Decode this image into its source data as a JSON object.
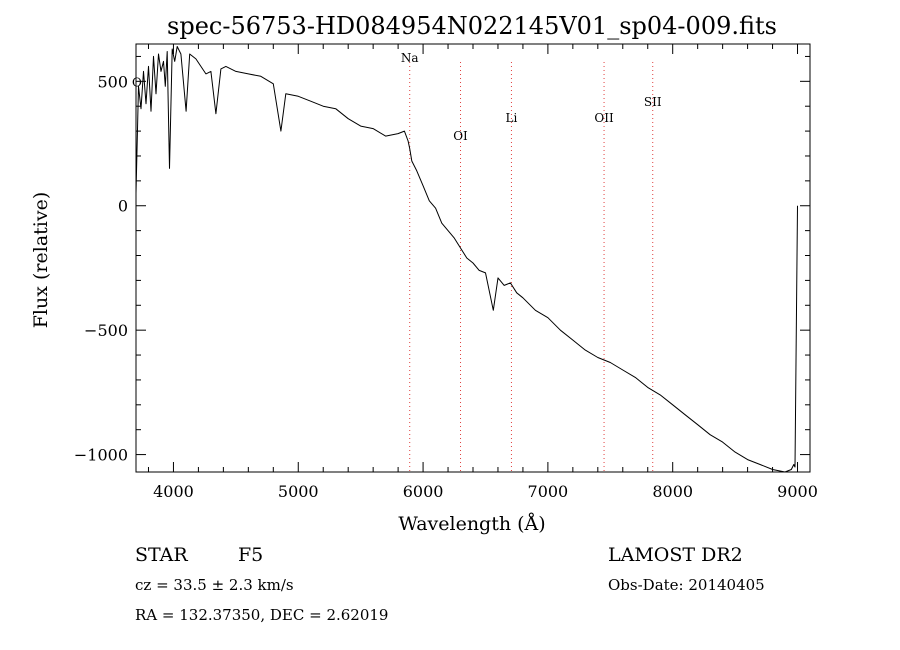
{
  "colors": {
    "axis": "#000000",
    "spectrum": "#000000",
    "line_marker": "#e0403f",
    "background": "#ffffff"
  },
  "chart_data": {
    "type": "line",
    "title": "spec-56753-HD084954N022145V01_sp04-009.fits",
    "xlabel": "Wavelength (Å)",
    "ylabel": "Flux (relative)",
    "xlim": [
      3700,
      9100
    ],
    "ylim": [
      -1070,
      650
    ],
    "x_ticks": [
      4000,
      5000,
      6000,
      7000,
      8000,
      9000
    ],
    "y_ticks": [
      -1000,
      -500,
      0,
      500
    ],
    "grid": false,
    "spectral_lines": [
      {
        "label": "Na",
        "x": 5893
      },
      {
        "label": "OI",
        "x": 6300
      },
      {
        "label": "Li",
        "x": 6708
      },
      {
        "label": "OII",
        "x": 7450
      },
      {
        "label": "SII",
        "x": 7840
      }
    ],
    "edge_label": "O",
    "series": [
      {
        "x": [
          3700,
          3720,
          3740,
          3760,
          3780,
          3800,
          3820,
          3840,
          3860,
          3880,
          3900,
          3920,
          3935,
          3950,
          3968,
          3990,
          4010,
          4030,
          4060,
          4101,
          4130,
          4180,
          4220,
          4260,
          4300,
          4340,
          4380,
          4420,
          4500,
          4600,
          4700,
          4800,
          4861,
          4900,
          5000,
          5100,
          5200,
          5300,
          5400,
          5500,
          5600,
          5700,
          5800,
          5850,
          5880,
          5893,
          5910,
          5950,
          6000,
          6050,
          6100,
          6150,
          6200,
          6250,
          6300,
          6350,
          6400,
          6450,
          6500,
          6563,
          6600,
          6650,
          6700,
          6750,
          6800,
          6900,
          7000,
          7100,
          7200,
          7300,
          7400,
          7500,
          7600,
          7700,
          7800,
          7900,
          8000,
          8100,
          8200,
          8300,
          8400,
          8500,
          8600,
          8700,
          8800,
          8850,
          8900,
          8950,
          8970,
          8980,
          8990,
          9000
        ],
        "y": [
          50,
          480,
          390,
          540,
          410,
          560,
          380,
          600,
          450,
          610,
          540,
          580,
          480,
          620,
          150,
          630,
          580,
          640,
          610,
          380,
          610,
          590,
          560,
          530,
          540,
          370,
          550,
          560,
          540,
          530,
          520,
          490,
          300,
          450,
          440,
          420,
          400,
          390,
          350,
          320,
          310,
          280,
          290,
          300,
          260,
          230,
          180,
          140,
          80,
          20,
          -10,
          -70,
          -100,
          -130,
          -170,
          -210,
          -230,
          -260,
          -270,
          -420,
          -290,
          -320,
          -310,
          -350,
          -370,
          -420,
          -450,
          -500,
          -540,
          -580,
          -610,
          -630,
          -660,
          -690,
          -730,
          -760,
          -800,
          -840,
          -880,
          -920,
          -950,
          -990,
          -1020,
          -1040,
          -1060,
          -1065,
          -1070,
          -1060,
          -1040,
          -1050,
          -500,
          0
        ]
      }
    ]
  },
  "footer": {
    "object_class": "STAR",
    "subclass": "F5",
    "survey": "LAMOST DR2",
    "cz": "cz = 33.5 ± 2.3 km/s",
    "obs_date": "Obs-Date: 20140405",
    "coords": "RA = 132.37350, DEC =   2.62019"
  }
}
